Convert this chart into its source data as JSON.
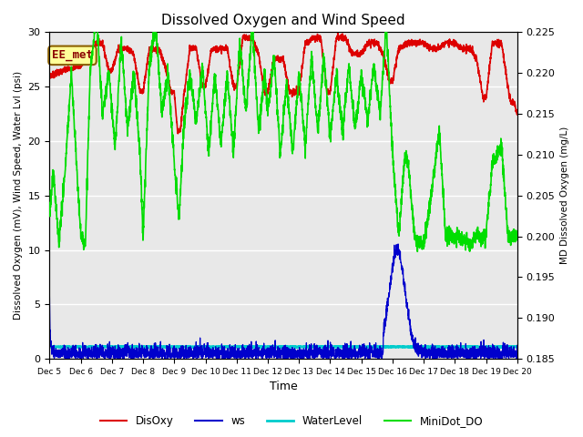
{
  "title": "Dissolved Oxygen and Wind Speed",
  "ylabel_left": "Dissolved Oxygen (mV), Wind Speed, Water Lvl (psi)",
  "ylabel_right": "MD Dissolved Oxygen (mg/L)",
  "xlabel": "Time",
  "ylim_left": [
    0,
    30
  ],
  "ylim_right": [
    0.185,
    0.225
  ],
  "annotation_text": "EE_met",
  "bg_color": "#e8e8e8",
  "xtick_labels": [
    "Dec 5",
    "Dec 6",
    "Dec 7",
    "Dec 8",
    "Dec 9",
    "Dec 10",
    "Dec 11",
    "Dec 12",
    "Dec 13",
    "Dec 14",
    "Dec 15",
    "Dec 16",
    "Dec 17",
    "Dec 18",
    "Dec 19",
    "Dec 20"
  ],
  "yticks_left": [
    0,
    5,
    10,
    15,
    20,
    25,
    30
  ],
  "disoxy_color": "#dd0000",
  "ws_color": "#0000cc",
  "water_color": "#00cccc",
  "minidot_color": "#00dd00"
}
